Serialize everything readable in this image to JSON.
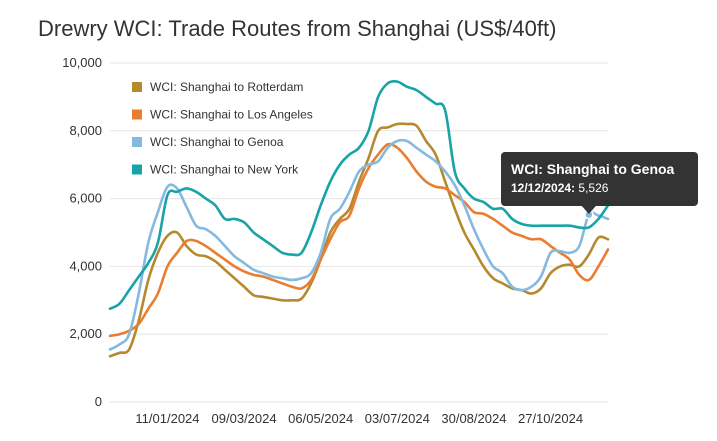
{
  "chart_data": {
    "type": "line",
    "title": "Drewry WCI: Trade Routes from Shanghai (US$/40ft)",
    "xlabel": "",
    "ylabel": "",
    "ylim": [
      0,
      10000
    ],
    "y_ticks": [
      "0",
      "2,000",
      "4,000",
      "6,000",
      "8,000",
      "10,000"
    ],
    "y_tick_values": [
      0,
      2000,
      4000,
      6000,
      8000,
      10000
    ],
    "x_tick_labels": [
      "11/01/2024",
      "09/03/2024",
      "06/05/2024",
      "03/07/2024",
      "30/08/2024",
      "27/10/2024"
    ],
    "x_tick_index": [
      6,
      14,
      22,
      30,
      38,
      46
    ],
    "grid": true,
    "legend_position": "top-left",
    "series": [
      {
        "name": "WCI: Shanghai to Rotterdam",
        "color": "#b5892e",
        "values": [
          1350,
          1450,
          1550,
          2400,
          3600,
          4400,
          4900,
          5000,
          4600,
          4350,
          4300,
          4150,
          3900,
          3650,
          3400,
          3150,
          3100,
          3050,
          3000,
          3000,
          3050,
          3500,
          4200,
          5000,
          5400,
          5700,
          6500,
          7200,
          8000,
          8100,
          8200,
          8200,
          8150,
          7700,
          7300,
          6500,
          5700,
          5000,
          4500,
          4000,
          3650,
          3500,
          3350,
          3300,
          3200,
          3350,
          3800,
          4000,
          4050,
          4000,
          4350,
          4850,
          4800
        ]
      },
      {
        "name": "WCI: Shanghai to Los Angeles",
        "color": "#e97d31",
        "values": [
          1950,
          2000,
          2100,
          2300,
          2750,
          3200,
          4000,
          4400,
          4750,
          4750,
          4600,
          4400,
          4200,
          4000,
          3850,
          3750,
          3700,
          3600,
          3500,
          3400,
          3350,
          3600,
          4200,
          4800,
          5300,
          5500,
          6300,
          6900,
          7300,
          7600,
          7500,
          7200,
          6800,
          6500,
          6350,
          6300,
          6100,
          5900,
          5600,
          5550,
          5400,
          5200,
          5000,
          4900,
          4800,
          4800,
          4600,
          4400,
          4200,
          3750,
          3600,
          4000,
          4500
        ]
      },
      {
        "name": "WCI: Shanghai to Genoa",
        "color": "#85b9e0",
        "values": [
          1550,
          1700,
          2000,
          3200,
          4700,
          5600,
          6350,
          6300,
          5750,
          5200,
          5100,
          4900,
          4600,
          4300,
          4100,
          3900,
          3800,
          3700,
          3650,
          3600,
          3650,
          3800,
          4400,
          5400,
          5700,
          6200,
          6800,
          7000,
          7100,
          7500,
          7700,
          7700,
          7500,
          7300,
          7100,
          6800,
          6400,
          5800,
          5100,
          4500,
          4000,
          3800,
          3400,
          3300,
          3400,
          3700,
          4400,
          4450,
          4400,
          4600,
          5526,
          5500,
          5400
        ]
      },
      {
        "name": "WCI: Shanghai to New York",
        "color": "#18a4a6",
        "values": [
          2750,
          2900,
          3300,
          3700,
          4100,
          4700,
          6100,
          6200,
          6300,
          6200,
          6000,
          5800,
          5400,
          5400,
          5300,
          5000,
          4800,
          4600,
          4400,
          4350,
          4400,
          5000,
          5800,
          6500,
          7000,
          7300,
          7500,
          8000,
          9000,
          9400,
          9450,
          9300,
          9200,
          9000,
          8800,
          8600,
          6800,
          6300,
          6000,
          5900,
          5700,
          5700,
          5400,
          5250,
          5200,
          5200,
          5200,
          5200,
          5200,
          5150,
          5150,
          5400,
          5800
        ]
      }
    ],
    "tooltip": {
      "series": "WCI: Shanghai to Genoa",
      "date": "12/12/2024",
      "value": "5,526",
      "point_index": 50
    }
  }
}
